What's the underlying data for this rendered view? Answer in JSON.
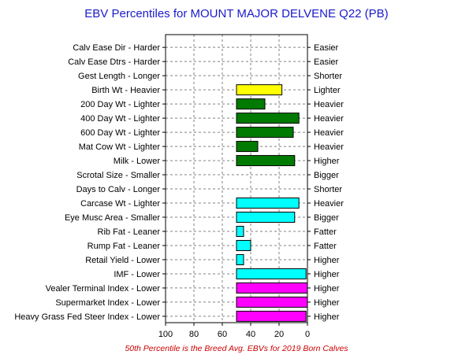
{
  "chart_data": {
    "type": "bar",
    "orientation": "horizontal",
    "title": "EBV Percentiles for MOUNT MAJOR DELVENE Q22 (PB)",
    "footnote": "50th Percentile is the Breed Avg. EBVs for 2019 Born Calves",
    "x_axis": {
      "ticks": [
        100,
        80,
        60,
        40,
        20,
        0
      ],
      "reversed": true,
      "xlim": [
        100,
        0
      ],
      "baseline": 50
    },
    "grid": true,
    "colors": {
      "title": "#1a1acc",
      "footnote": "#cc0000",
      "yellow": "#ffff00",
      "green": "#007a00",
      "cyan": "#00ffff",
      "magenta": "#ff00ff"
    },
    "traits": [
      {
        "label": "Calv Ease Dir - Harder",
        "right": "Easier",
        "value": null,
        "color": null
      },
      {
        "label": "Calv Ease Dtrs - Harder",
        "right": "Easier",
        "value": null,
        "color": null
      },
      {
        "label": "Gest Length - Longer",
        "right": "Shorter",
        "value": null,
        "color": null
      },
      {
        "label": "Birth Wt - Heavier",
        "right": "Lighter",
        "value": 18,
        "color": "yellow"
      },
      {
        "label": "200 Day Wt - Lighter",
        "right": "Heavier",
        "value": 30,
        "color": "green"
      },
      {
        "label": "400 Day Wt - Lighter",
        "right": "Heavier",
        "value": 6,
        "color": "green"
      },
      {
        "label": "600 Day Wt - Lighter",
        "right": "Heavier",
        "value": 10,
        "color": "green"
      },
      {
        "label": "Mat Cow Wt - Lighter",
        "right": "Heavier",
        "value": 35,
        "color": "green"
      },
      {
        "label": "Milk - Lower",
        "right": "Higher",
        "value": 9,
        "color": "green"
      },
      {
        "label": "Scrotal Size - Smaller",
        "right": "Bigger",
        "value": null,
        "color": null
      },
      {
        "label": "Days to Calv - Longer",
        "right": "Shorter",
        "value": null,
        "color": null
      },
      {
        "label": "Carcase Wt - Lighter",
        "right": "Heavier",
        "value": 6,
        "color": "cyan"
      },
      {
        "label": "Eye Musc Area - Smaller",
        "right": "Bigger",
        "value": 9,
        "color": "cyan"
      },
      {
        "label": "Rib Fat - Leaner",
        "right": "Fatter",
        "value": 45,
        "color": "cyan"
      },
      {
        "label": "Rump Fat - Leaner",
        "right": "Fatter",
        "value": 40,
        "color": "cyan"
      },
      {
        "label": "Retail Yield - Lower",
        "right": "Higher",
        "value": 45,
        "color": "cyan"
      },
      {
        "label": "IMF - Lower",
        "right": "Higher",
        "value": 1,
        "color": "cyan"
      },
      {
        "label": "Vealer Terminal Index - Lower",
        "right": "Higher",
        "value": 0,
        "color": "magenta"
      },
      {
        "label": "Supermarket Index - Lower",
        "right": "Higher",
        "value": 0,
        "color": "magenta"
      },
      {
        "label": "Heavy Grass Fed Steer Index - Lower",
        "right": "Higher",
        "value": 1,
        "color": "magenta"
      }
    ]
  }
}
